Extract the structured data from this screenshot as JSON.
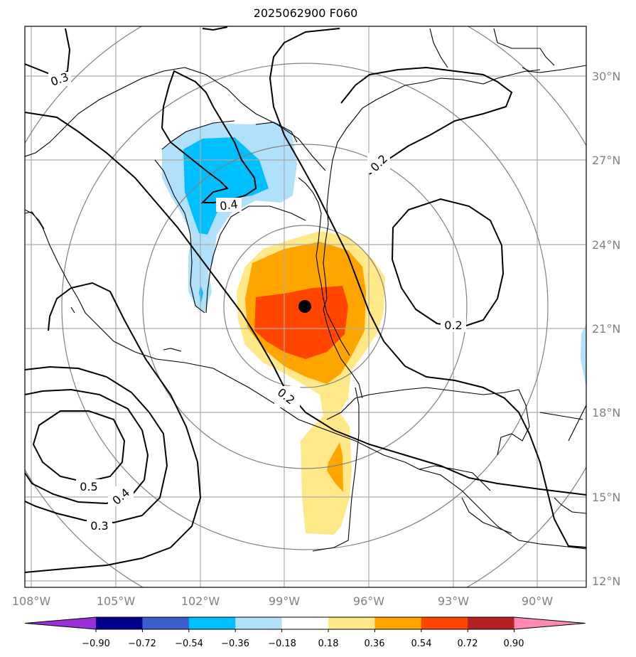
{
  "title": "2025062900 F060",
  "map": {
    "lon_ticks": [
      "108°W",
      "105°W",
      "102°W",
      "99°W",
      "96°W",
      "93°W",
      "90°W"
    ],
    "lat_ticks": [
      "30°N",
      "27°N",
      "24°N",
      "21°N",
      "18°N",
      "15°N",
      "12°N"
    ],
    "colors": {
      "coastline": "#000000",
      "gridlines": "#aaaaaa",
      "range_rings": "#808080",
      "contour": "#000000",
      "center_marker": "#000000"
    },
    "shading_legend": {
      "boundaries": [
        "−0.90",
        "−0.72",
        "−0.54",
        "−0.36",
        "−0.18",
        "0.18",
        "0.36",
        "0.54",
        "0.72",
        "0.90"
      ],
      "bins": [
        {
          "color": "#9b30d9"
        },
        {
          "color": "#00008b"
        },
        {
          "color": "#3a5fcd"
        },
        {
          "color": "#00bfff"
        },
        {
          "color": "#b0e0fa"
        },
        {
          "color": "#ffffff"
        },
        {
          "color": "#ffe888"
        },
        {
          "color": "#ffa500"
        },
        {
          "color": "#ff4500"
        },
        {
          "color": "#b22222"
        },
        {
          "color": "#ff88b4"
        }
      ]
    },
    "contour_labels": [
      "0.3",
      "0.4",
      "0.2",
      "0.2",
      "0.2",
      "0.5",
      "0.4",
      "0.3"
    ],
    "center_marker": {
      "lon": -98.2,
      "lat": 21.7
    }
  }
}
